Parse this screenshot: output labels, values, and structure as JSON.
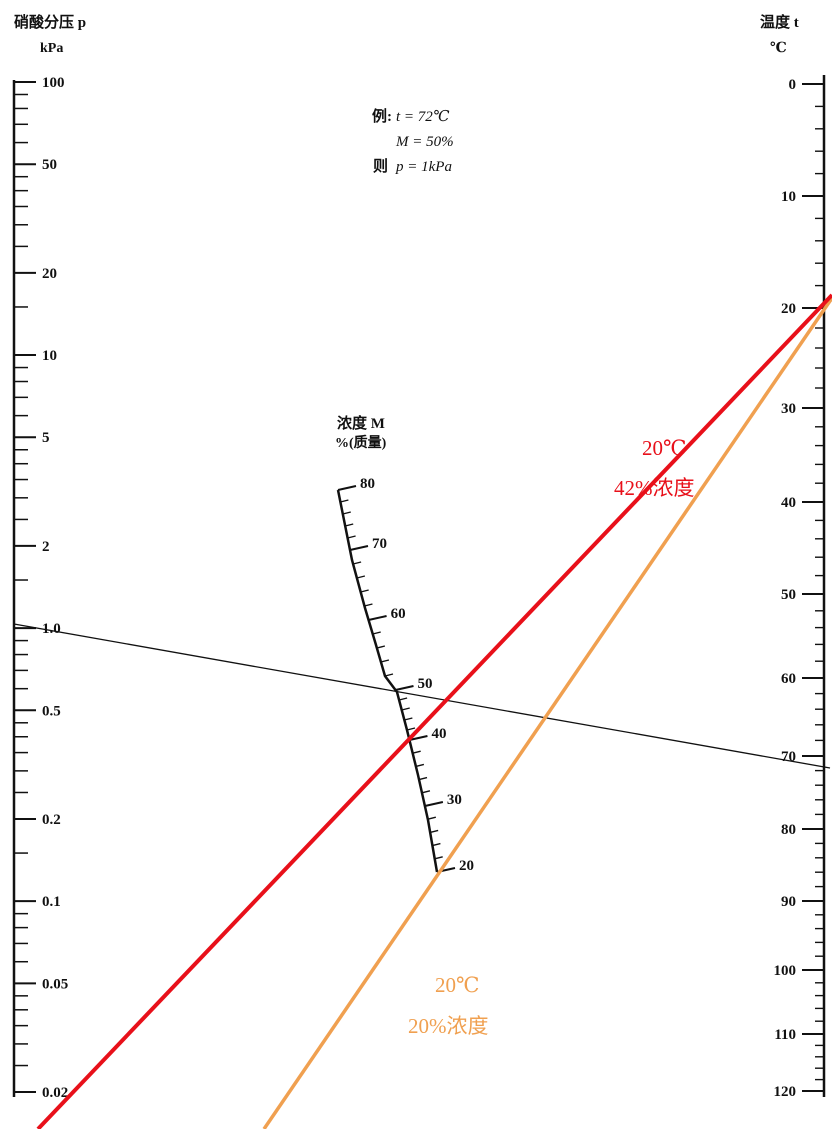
{
  "left_axis": {
    "title": "硝酸分压 p",
    "unit": "kPa",
    "tick_labels": [
      "100",
      "50",
      "20",
      "10",
      "5",
      "2",
      "1.0",
      "0.5",
      "0.2",
      "0.1",
      "0.05",
      "0.02"
    ]
  },
  "right_axis": {
    "title": "温度 t",
    "unit": "℃",
    "tick_labels": [
      "0",
      "10",
      "20",
      "30",
      "40",
      "50",
      "60",
      "70",
      "80",
      "90",
      "100",
      "110",
      "120"
    ]
  },
  "middle_axis": {
    "title": "浓度 M",
    "unit": "%(质量)",
    "tick_labels": [
      "80",
      "70",
      "60",
      "50",
      "40",
      "30",
      "20"
    ]
  },
  "example": {
    "prefix": "例:",
    "line1": "t = 72℃",
    "line2": "M = 50%",
    "conclusion_prefix": "则",
    "line3": "p = 1kPa"
  },
  "annotations": {
    "red_temp": "20℃",
    "red_conc": "42%浓度",
    "orange_temp": "20℃",
    "orange_conc": "20%浓度"
  },
  "colors": {
    "red_line": "#e8101a",
    "orange_line": "#f0a050",
    "example_line": "#111111"
  },
  "chart_data": {
    "type": "nomogram",
    "axes": [
      {
        "name": "硝酸分压 p",
        "unit": "kPa",
        "scale": "log",
        "range": [
          0.02,
          100
        ]
      },
      {
        "name": "浓度 M",
        "unit": "%(质量)",
        "scale": "nonlinear",
        "range": [
          20,
          80
        ]
      },
      {
        "name": "温度 t",
        "unit": "℃",
        "scale": "nonlinear",
        "range": [
          0,
          120
        ]
      }
    ],
    "isolines": [
      {
        "color": "black",
        "t": 72,
        "M": 50,
        "p": 1
      },
      {
        "color": "red",
        "t": 20,
        "M": 42
      },
      {
        "color": "orange",
        "t": 20,
        "M": 20
      }
    ]
  }
}
